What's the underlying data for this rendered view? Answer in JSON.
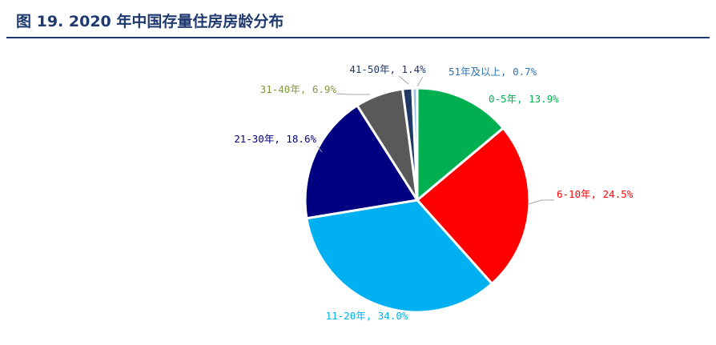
{
  "header": {
    "title": "图 19. 2020 年中国存量住房房龄分布"
  },
  "chart_data": {
    "type": "pie",
    "title": "",
    "slices": [
      {
        "name": "0-5年",
        "value": 13.9,
        "label": "0-5年, 13.9%",
        "color": "#00b050"
      },
      {
        "name": "6-10年",
        "value": 24.5,
        "label": "6-10年, 24.5%",
        "color": "#ff0000"
      },
      {
        "name": "11-20年",
        "value": 34.0,
        "label": "11-20年, 34.0%",
        "color": "#00b0f0"
      },
      {
        "name": "21-30年",
        "value": 18.6,
        "label": "21-30年, 18.6%",
        "color": "#000080"
      },
      {
        "name": "31-40年",
        "value": 6.9,
        "label": "31-40年, 6.9%",
        "color": "#595959"
      },
      {
        "name": "41-50年",
        "value": 1.4,
        "label": "41-50年, 1.4%",
        "color": "#1f3864"
      },
      {
        "name": "51年及以上",
        "value": 0.7,
        "label": "51年及以上, 0.7%",
        "color": "#9dc3e6"
      }
    ],
    "label_colors": [
      "#00b050",
      "#ff0000",
      "#00b0f0",
      "#000080",
      "#7f9a3e",
      "#1f3864",
      "#2e75b6"
    ]
  }
}
